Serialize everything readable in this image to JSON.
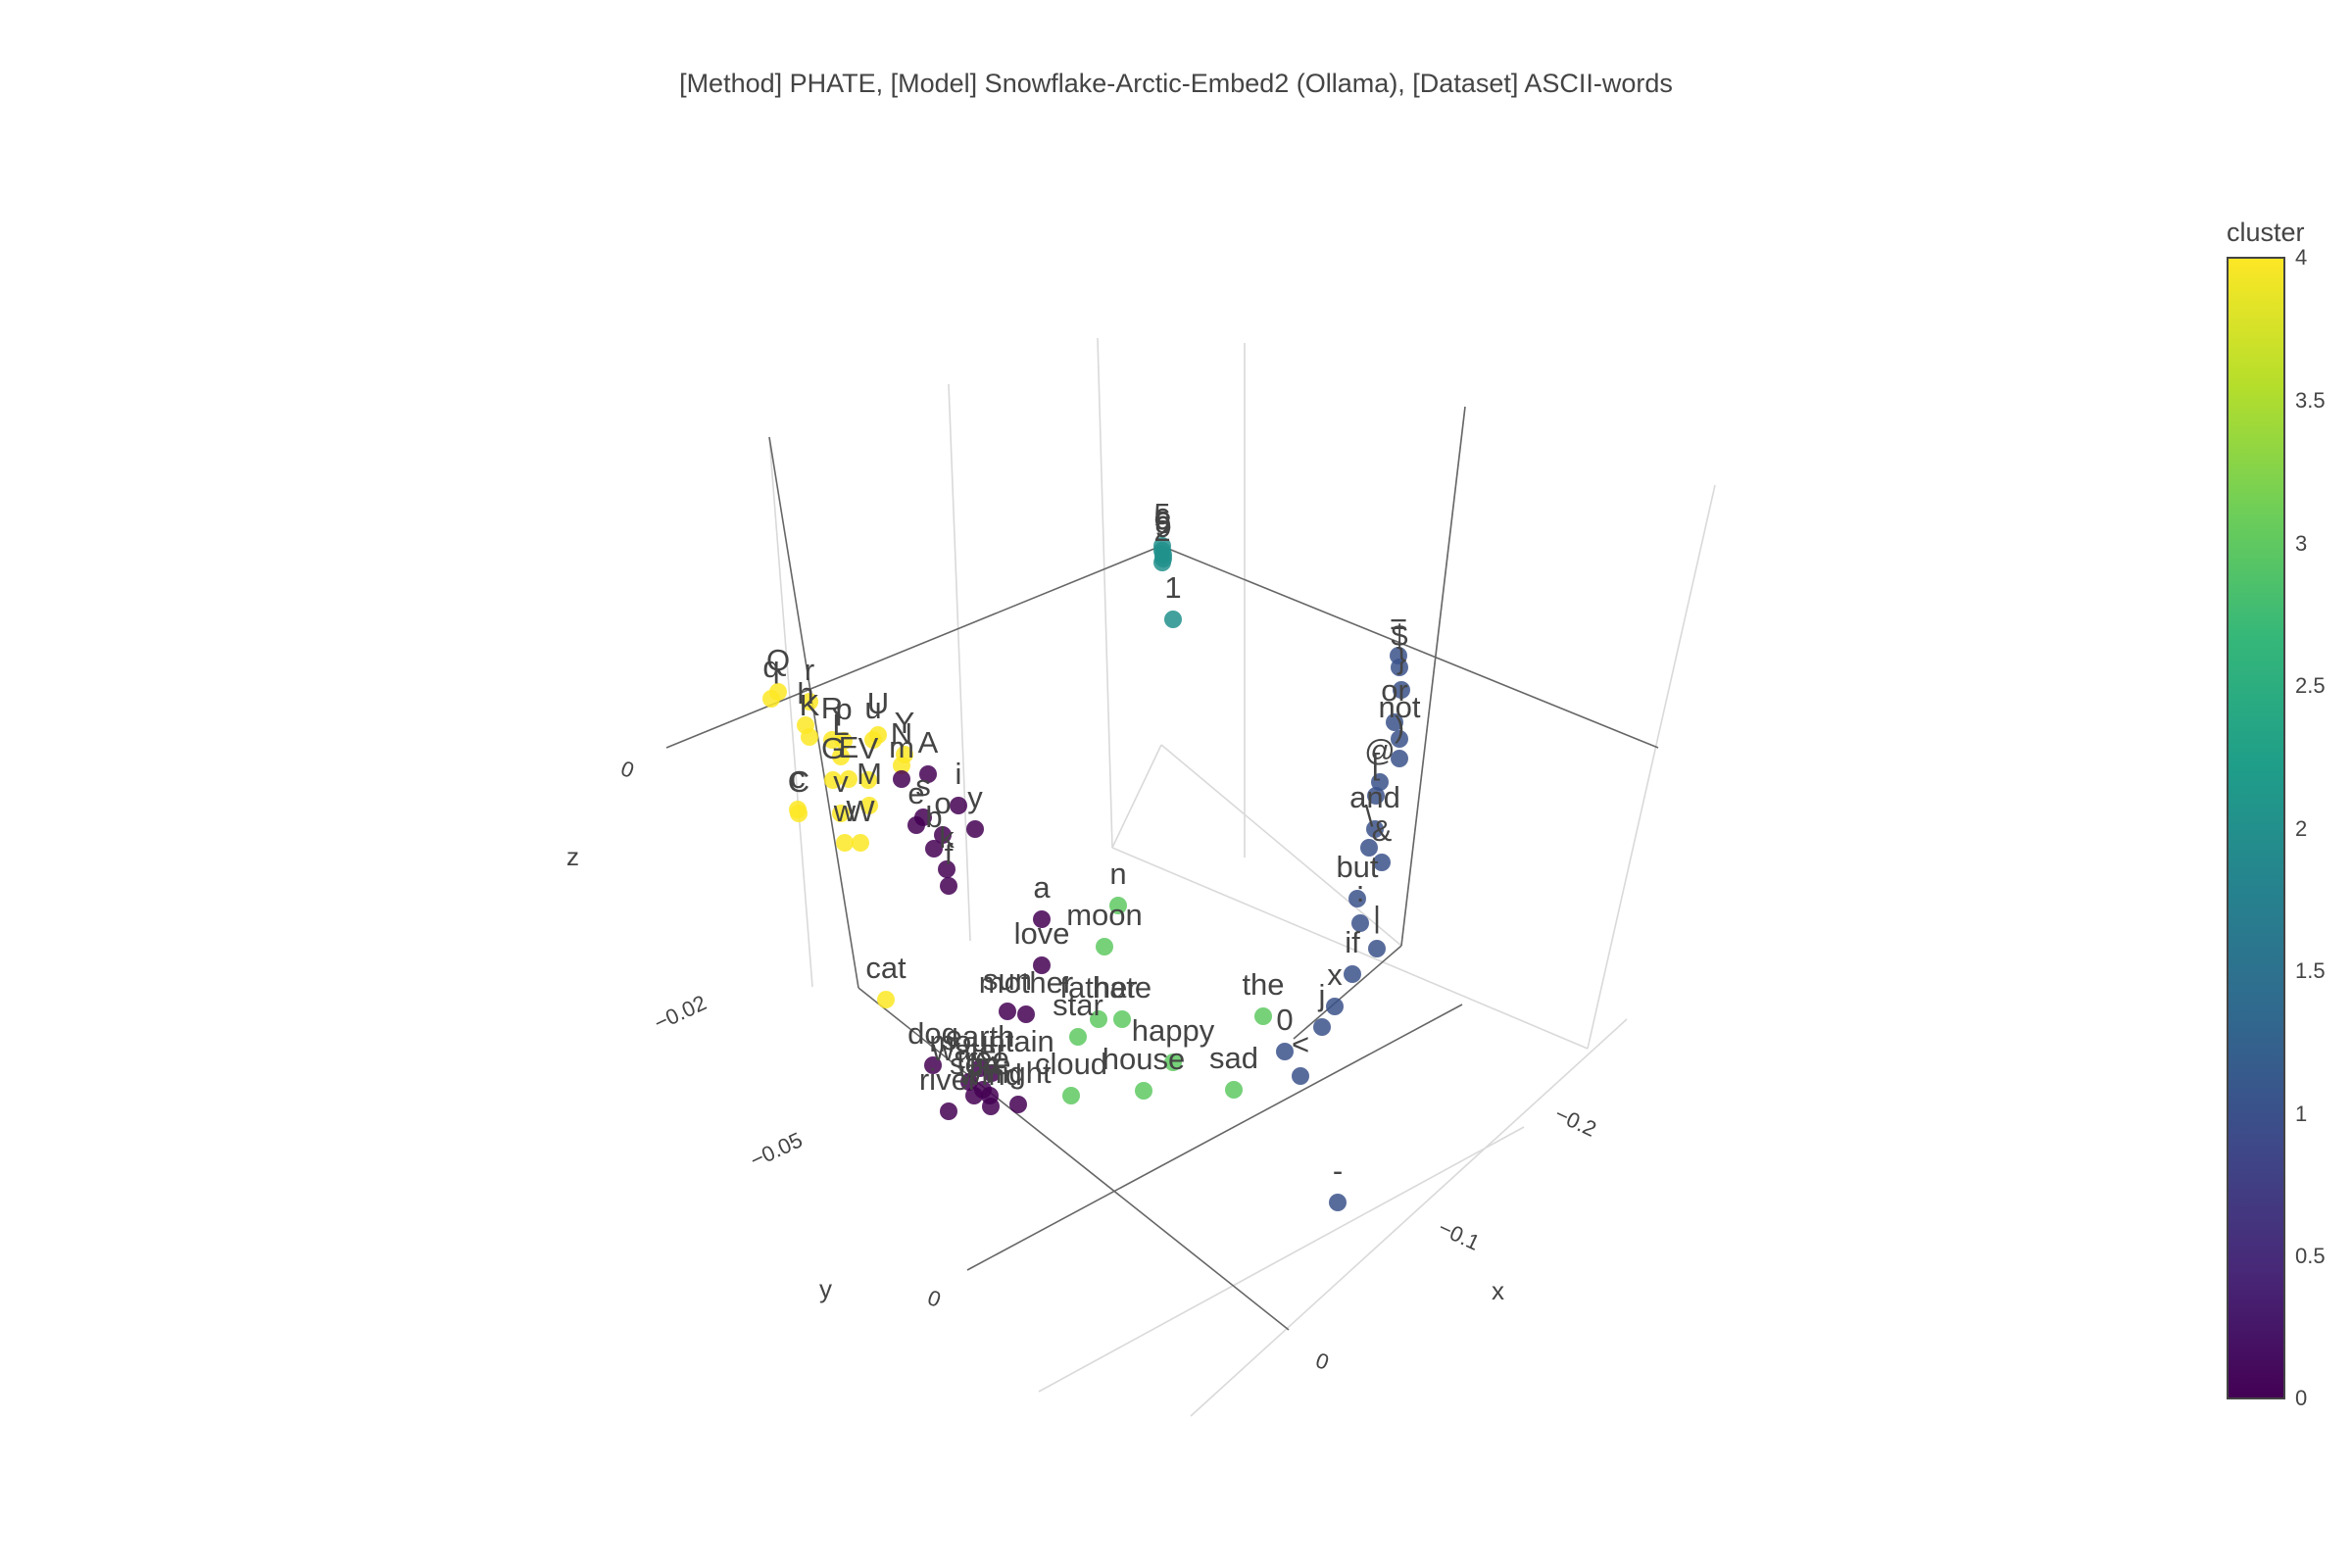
{
  "title": "[Method] PHATE, [Model] Snowflake-Arctic-Embed2 (Ollama), [Dataset] ASCII-words",
  "chart_data": {
    "type": "scatter3d",
    "title": "[Method] PHATE, [Model] Snowflake-Arctic-Embed2 (Ollama), [Dataset] ASCII-words",
    "axes": {
      "x": {
        "label": "x",
        "ticks": [
          "0",
          "−0.1",
          "−0.2"
        ]
      },
      "y": {
        "label": "y",
        "ticks": [
          "0",
          "−0.05",
          "−0.02"
        ]
      },
      "z": {
        "label": "z",
        "ticks": [
          "0"
        ]
      }
    },
    "colorbar": {
      "title": "cluster",
      "ticks": [
        "4",
        "3.5",
        "3",
        "2.5",
        "2",
        "1.5",
        "1",
        "0.5",
        "0"
      ],
      "range": [
        0,
        4
      ],
      "colorscale": "viridis"
    },
    "cluster_colors": {
      "0": "#440154",
      "1": "#3b528b",
      "2": "#21918c",
      "3": "#5ec962",
      "4": "#fde725"
    },
    "points": [
      {
        "label": "5",
        "cluster": 2,
        "sx": 1186,
        "sy": 557
      },
      {
        "label": "6",
        "cluster": 2,
        "sx": 1186,
        "sy": 562
      },
      {
        "label": "8",
        "cluster": 2,
        "sx": 1187,
        "sy": 566
      },
      {
        "label": "9",
        "cluster": 2,
        "sx": 1187,
        "sy": 570
      },
      {
        "label": "2",
        "cluster": 2,
        "sx": 1186,
        "sy": 574
      },
      {
        "label": "1",
        "cluster": 2,
        "sx": 1197,
        "sy": 632
      },
      {
        "label": "Q",
        "cluster": 4,
        "sx": 794,
        "sy": 706
      },
      {
        "label": "q",
        "cluster": 4,
        "sx": 787,
        "sy": 713
      },
      {
        "label": "r",
        "cluster": 4,
        "sx": 826,
        "sy": 716
      },
      {
        "label": "U",
        "cluster": 4,
        "sx": 896,
        "sy": 750
      },
      {
        "label": "u",
        "cluster": 4,
        "sx": 891,
        "sy": 755
      },
      {
        "label": "h",
        "cluster": 4,
        "sx": 822,
        "sy": 740
      },
      {
        "label": "K",
        "cluster": 4,
        "sx": 826,
        "sy": 752
      },
      {
        "label": "R",
        "cluster": 4,
        "sx": 849,
        "sy": 755
      },
      {
        "label": "p",
        "cluster": 4,
        "sx": 861,
        "sy": 756
      },
      {
        "label": "Y",
        "cluster": 4,
        "sx": 923,
        "sy": 770
      },
      {
        "label": "L",
        "cluster": 4,
        "sx": 858,
        "sy": 772
      },
      {
        "label": "N",
        "cluster": 4,
        "sx": 920,
        "sy": 781
      },
      {
        "label": "G",
        "cluster": 4,
        "sx": 850,
        "sy": 796
      },
      {
        "label": "E",
        "cluster": 4,
        "sx": 866,
        "sy": 795
      },
      {
        "label": "V",
        "cluster": 4,
        "sx": 886,
        "sy": 796
      },
      {
        "label": "C",
        "cluster": 4,
        "sx": 815,
        "sy": 830
      },
      {
        "label": "c",
        "cluster": 4,
        "sx": 814,
        "sy": 826
      },
      {
        "label": "v",
        "cluster": 4,
        "sx": 858,
        "sy": 830
      },
      {
        "label": "M",
        "cluster": 4,
        "sx": 887,
        "sy": 822
      },
      {
        "label": "W",
        "cluster": 4,
        "sx": 878,
        "sy": 860
      },
      {
        "label": "w",
        "cluster": 4,
        "sx": 862,
        "sy": 860
      },
      {
        "label": "cat",
        "cluster": 4,
        "sx": 904,
        "sy": 1020
      },
      {
        "label": "m",
        "cluster": 0,
        "sx": 920,
        "sy": 795
      },
      {
        "label": "A",
        "cluster": 0,
        "sx": 947,
        "sy": 790
      },
      {
        "label": "y",
        "cluster": 0,
        "sx": 995,
        "sy": 846
      },
      {
        "label": "i",
        "cluster": 0,
        "sx": 978,
        "sy": 822
      },
      {
        "label": "s",
        "cluster": 0,
        "sx": 942,
        "sy": 834
      },
      {
        "label": "o",
        "cluster": 0,
        "sx": 962,
        "sy": 852
      },
      {
        "label": "e",
        "cluster": 0,
        "sx": 935,
        "sy": 842
      },
      {
        "label": "b",
        "cluster": 0,
        "sx": 953,
        "sy": 866
      },
      {
        "label": "k",
        "cluster": 0,
        "sx": 966,
        "sy": 887
      },
      {
        "label": "f",
        "cluster": 0,
        "sx": 968,
        "sy": 904
      },
      {
        "label": "a",
        "cluster": 0,
        "sx": 1063,
        "sy": 938
      },
      {
        "label": "love",
        "cluster": 0,
        "sx": 1063,
        "sy": 985
      },
      {
        "label": "sun",
        "cluster": 0,
        "sx": 1028,
        "sy": 1032
      },
      {
        "label": "mother",
        "cluster": 0,
        "sx": 1047,
        "sy": 1035
      },
      {
        "label": "dog",
        "cluster": 0,
        "sx": 952,
        "sy": 1087
      },
      {
        "label": "earth",
        "cluster": 0,
        "sx": 1000,
        "sy": 1090
      },
      {
        "label": "mountain",
        "cluster": 0,
        "sx": 1012,
        "sy": 1095
      },
      {
        "label": "water",
        "cluster": 0,
        "sx": 989,
        "sy": 1104
      },
      {
        "label": "tree",
        "cluster": 0,
        "sx": 1003,
        "sy": 1112
      },
      {
        "label": "fire",
        "cluster": 0,
        "sx": 1010,
        "sy": 1118
      },
      {
        "label": "river",
        "cluster": 0,
        "sx": 968,
        "sy": 1134
      },
      {
        "label": "sea",
        "cluster": 0,
        "sx": 994,
        "sy": 1118
      },
      {
        "label": "wind",
        "cluster": 0,
        "sx": 1011,
        "sy": 1129
      },
      {
        "label": "night",
        "cluster": 0,
        "sx": 1039,
        "sy": 1127
      },
      {
        "label": "n",
        "cluster": 3,
        "sx": 1141,
        "sy": 924
      },
      {
        "label": "moon",
        "cluster": 3,
        "sx": 1127,
        "sy": 966
      },
      {
        "label": "father",
        "cluster": 3,
        "sx": 1121,
        "sy": 1040
      },
      {
        "label": "hate",
        "cluster": 3,
        "sx": 1145,
        "sy": 1040
      },
      {
        "label": "star",
        "cluster": 3,
        "sx": 1100,
        "sy": 1058
      },
      {
        "label": "happy",
        "cluster": 3,
        "sx": 1197,
        "sy": 1084
      },
      {
        "label": "house",
        "cluster": 3,
        "sx": 1167,
        "sy": 1113
      },
      {
        "label": "cloud",
        "cluster": 3,
        "sx": 1093,
        "sy": 1118
      },
      {
        "label": "the",
        "cluster": 3,
        "sx": 1289,
        "sy": 1037
      },
      {
        "label": "sad",
        "cluster": 3,
        "sx": 1259,
        "sy": 1112
      },
      {
        "label": "=",
        "cluster": 1,
        "sx": 1427,
        "sy": 669
      },
      {
        "label": "$",
        "cluster": 1,
        "sx": 1428,
        "sy": 681
      },
      {
        "label": "}",
        "cluster": 1,
        "sx": 1430,
        "sy": 704
      },
      {
        "label": "or",
        "cluster": 1,
        "sx": 1423,
        "sy": 737
      },
      {
        "label": "not",
        "cluster": 1,
        "sx": 1428,
        "sy": 754
      },
      {
        "label": ")",
        "cluster": 1,
        "sx": 1428,
        "sy": 774
      },
      {
        "label": "@",
        "cluster": 1,
        "sx": 1408,
        "sy": 798
      },
      {
        "label": "[",
        "cluster": 1,
        "sx": 1404,
        "sy": 812
      },
      {
        "label": "and",
        "cluster": 1,
        "sx": 1403,
        "sy": 846
      },
      {
        "label": "\\",
        "cluster": 1,
        "sx": 1397,
        "sy": 865
      },
      {
        "label": "&",
        "cluster": 1,
        "sx": 1410,
        "sy": 880
      },
      {
        "label": "but",
        "cluster": 1,
        "sx": 1385,
        "sy": 917
      },
      {
        "label": ":",
        "cluster": 1,
        "sx": 1388,
        "sy": 942
      },
      {
        "label": "|",
        "cluster": 1,
        "sx": 1405,
        "sy": 968
      },
      {
        "label": "if",
        "cluster": 1,
        "sx": 1380,
        "sy": 994
      },
      {
        "label": "x",
        "cluster": 1,
        "sx": 1362,
        "sy": 1027
      },
      {
        "label": "j",
        "cluster": 1,
        "sx": 1349,
        "sy": 1048
      },
      {
        "label": "0",
        "cluster": 1,
        "sx": 1311,
        "sy": 1073
      },
      {
        "label": "<",
        "cluster": 1,
        "sx": 1327,
        "sy": 1098
      },
      {
        "label": "-",
        "cluster": 1,
        "sx": 1365,
        "sy": 1227
      }
    ]
  }
}
